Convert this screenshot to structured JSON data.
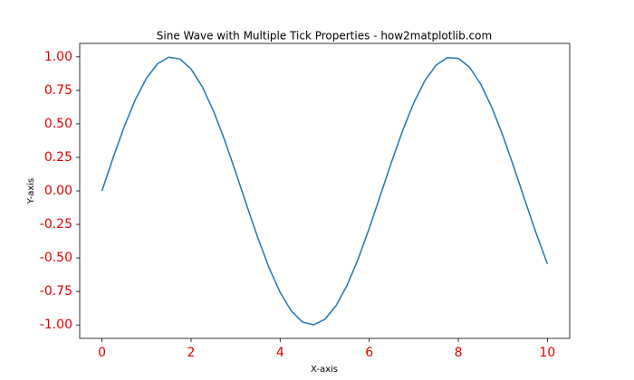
{
  "chart_data": {
    "type": "line",
    "title": "Sine Wave with Multiple Tick Properties - how2matplotlib.com",
    "x_label": "X-axis",
    "y_label": "Y-axis",
    "x": [
      0,
      0.25,
      0.5,
      0.75,
      1,
      1.25,
      1.5,
      1.75,
      2,
      2.25,
      2.5,
      2.75,
      3,
      3.25,
      3.5,
      3.75,
      4,
      4.25,
      4.5,
      4.75,
      5,
      5.25,
      5.5,
      5.75,
      6,
      6.25,
      6.5,
      6.75,
      7,
      7.25,
      7.5,
      7.75,
      8,
      8.25,
      8.5,
      8.75,
      9,
      9.25,
      9.5,
      9.75,
      10
    ],
    "series": [
      {
        "color": "#1f77b4",
        "values": [
          0,
          0.247,
          0.479,
          0.682,
          0.841,
          0.949,
          0.997,
          0.984,
          0.909,
          0.778,
          0.598,
          0.382,
          0.141,
          -0.108,
          -0.351,
          -0.572,
          -0.757,
          -0.895,
          -0.978,
          -0.999,
          -0.959,
          -0.859,
          -0.706,
          -0.509,
          -0.279,
          -0.033,
          0.215,
          0.45,
          0.657,
          0.823,
          0.938,
          0.994,
          0.989,
          0.923,
          0.798,
          0.624,
          0.412,
          0.174,
          -0.075,
          -0.319,
          -0.544
        ]
      }
    ],
    "xlim": [
      -0.5,
      10.5
    ],
    "ylim": [
      -1.1,
      1.1
    ],
    "xticks": [
      0,
      2,
      4,
      6,
      8,
      10
    ],
    "yticks": [
      {
        "value": -1,
        "label": "-1.00"
      },
      {
        "value": -0.75,
        "label": "-0.75"
      },
      {
        "value": -0.5,
        "label": "-0.50"
      },
      {
        "value": -0.25,
        "label": "-0.25"
      },
      {
        "value": 0,
        "label": "0.00"
      },
      {
        "value": 0.25,
        "label": "0.25"
      },
      {
        "value": 0.5,
        "label": "0.50"
      },
      {
        "value": 0.75,
        "label": "0.75"
      },
      {
        "value": 1,
        "label": "1.00"
      }
    ],
    "tick_label_color": "#e00000"
  }
}
